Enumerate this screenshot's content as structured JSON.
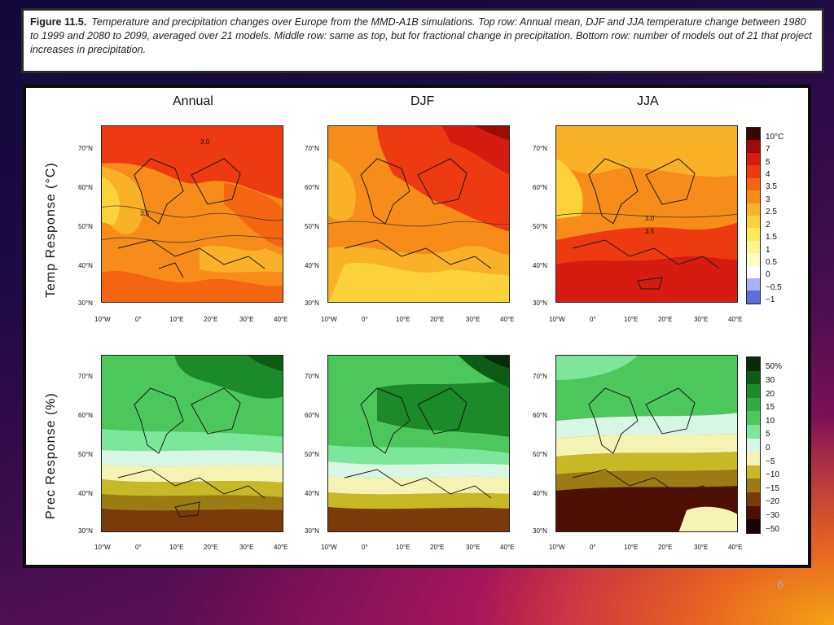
{
  "caption": {
    "label": "Figure 11.5.",
    "text": "Temperature and precipitation changes over Europe from the MMD-A1B simulations. Top row: Annual mean, DJF and JJA temperature change between 1980 to 1999 and 2080 to 2099, averaged over 21 models. Middle row: same as top, but for fractional change in precipitation. Bottom row: number of models out of 21 that project increases in precipitation."
  },
  "columns": [
    "Annual",
    "DJF",
    "JJA"
  ],
  "rows": [
    "Temp Response (°C)",
    "Prec Response (%)"
  ],
  "lat_labels": [
    "70°N",
    "60°N",
    "50°N",
    "40°N",
    "30°N"
  ],
  "lon_labels": [
    "10°W",
    "0°",
    "10°E",
    "20°E",
    "30°E",
    "40°E"
  ],
  "temp_legend": {
    "labels": [
      "10°C",
      "7",
      "5",
      "4",
      "3.5",
      "3",
      "2.5",
      "2",
      "1.5",
      "1",
      "0.5",
      "0",
      "−0.5",
      "−1"
    ],
    "colors": [
      "#3d0600",
      "#9c0c05",
      "#d61b10",
      "#ee3a10",
      "#f46512",
      "#f78c1a",
      "#f9b128",
      "#fbd23a",
      "#fde95c",
      "#fff58c",
      "#fffbc4",
      "#ffffff",
      "#a8b4ee",
      "#5a6ee0"
    ]
  },
  "prec_legend": {
    "labels": [
      "50%",
      "30",
      "20",
      "15",
      "10",
      "5",
      "0",
      "−5",
      "−10",
      "−15",
      "−20",
      "−30",
      "−50"
    ],
    "colors": [
      "#082a08",
      "#0c5c16",
      "#1c8a28",
      "#30ad3e",
      "#4cc75c",
      "#7de69a",
      "#d8f6e4",
      "#f5f3b4",
      "#c9b826",
      "#9c7a14",
      "#7a3a0a",
      "#4e1004",
      "#1a0402"
    ]
  },
  "contour_labels": [
    "3.0",
    "3.5",
    "3.0",
    "3.5"
  ],
  "slide_number": "6"
}
